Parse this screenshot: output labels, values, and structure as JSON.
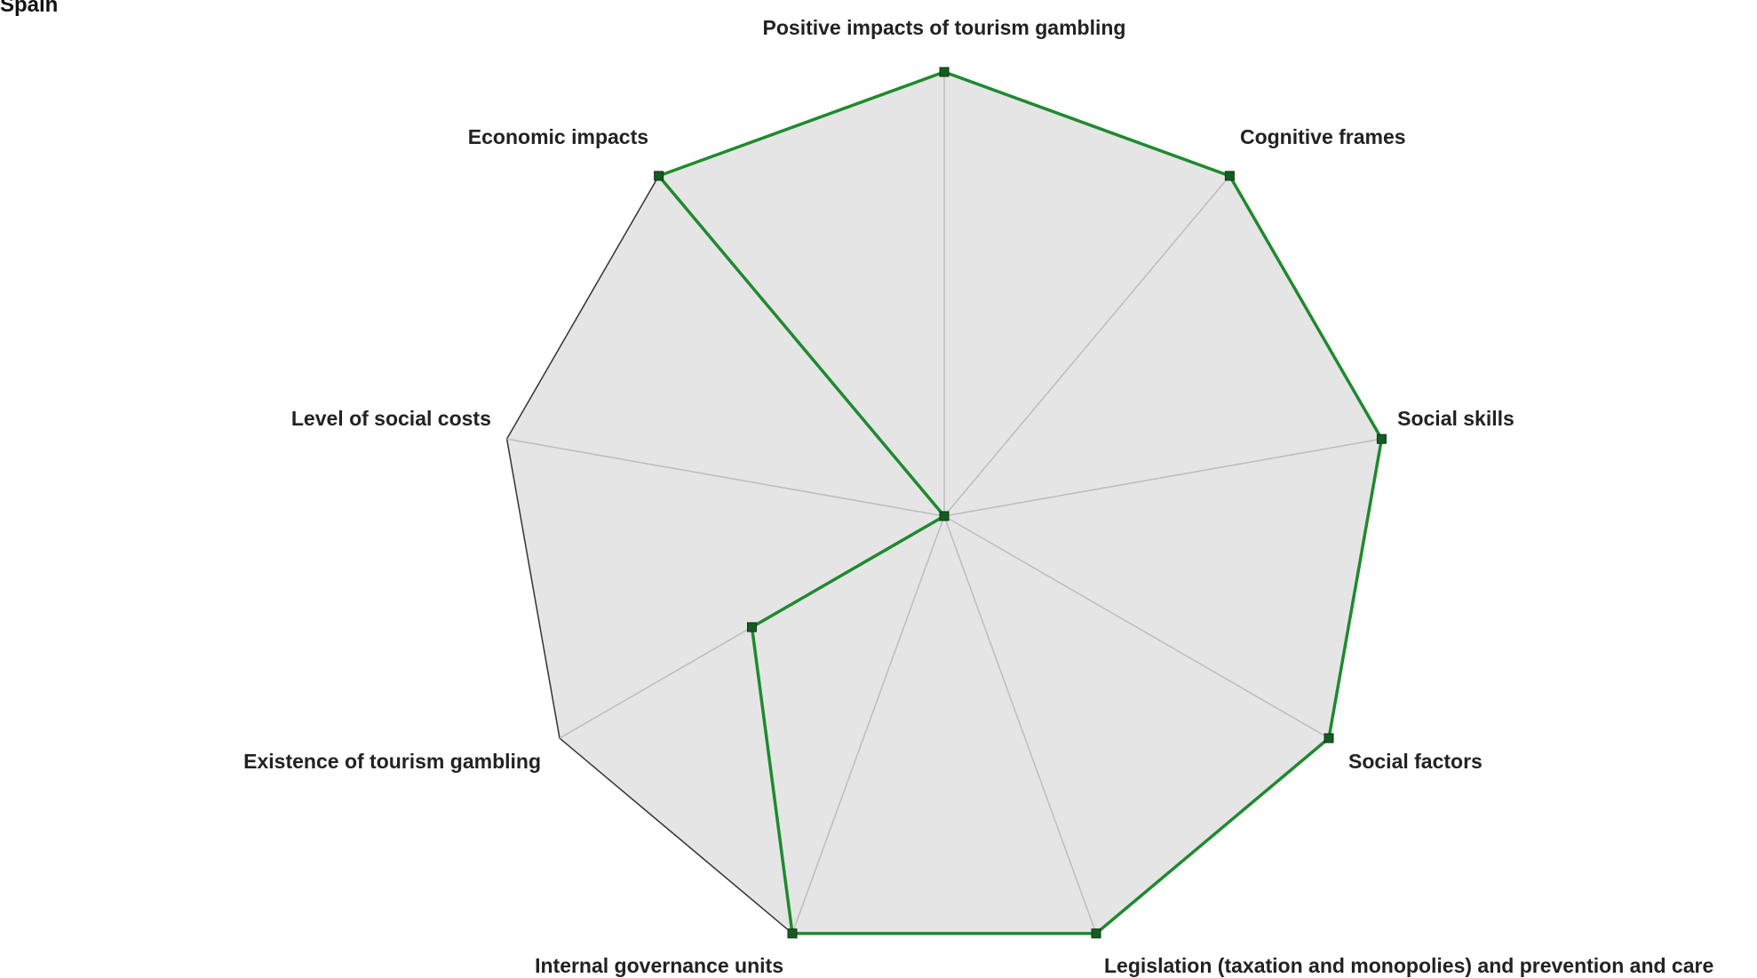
{
  "chart_data": {
    "type": "radar",
    "title": "Spain",
    "axes": [
      "Positive impacts of tourism gambling",
      "Cognitive frames",
      "Social skills",
      "Social factors",
      "Legislation (taxation and monopolies) and prevention and care",
      "Internal governance units",
      "Existence of tourism gambling",
      "Level of social costs",
      "Economic impacts"
    ],
    "series": [
      {
        "values": [
          1.0,
          1.0,
          1.0,
          1.0,
          1.0,
          1.0,
          0.5,
          0.0,
          1.0
        ]
      }
    ],
    "range": [
      0,
      1
    ],
    "colors": {
      "series_line": "#1e8a2e",
      "marker_fill": "#155c22",
      "background_fill": "#e5e5e5",
      "outline": "#333333",
      "spokes": "#bdbdbd"
    }
  }
}
